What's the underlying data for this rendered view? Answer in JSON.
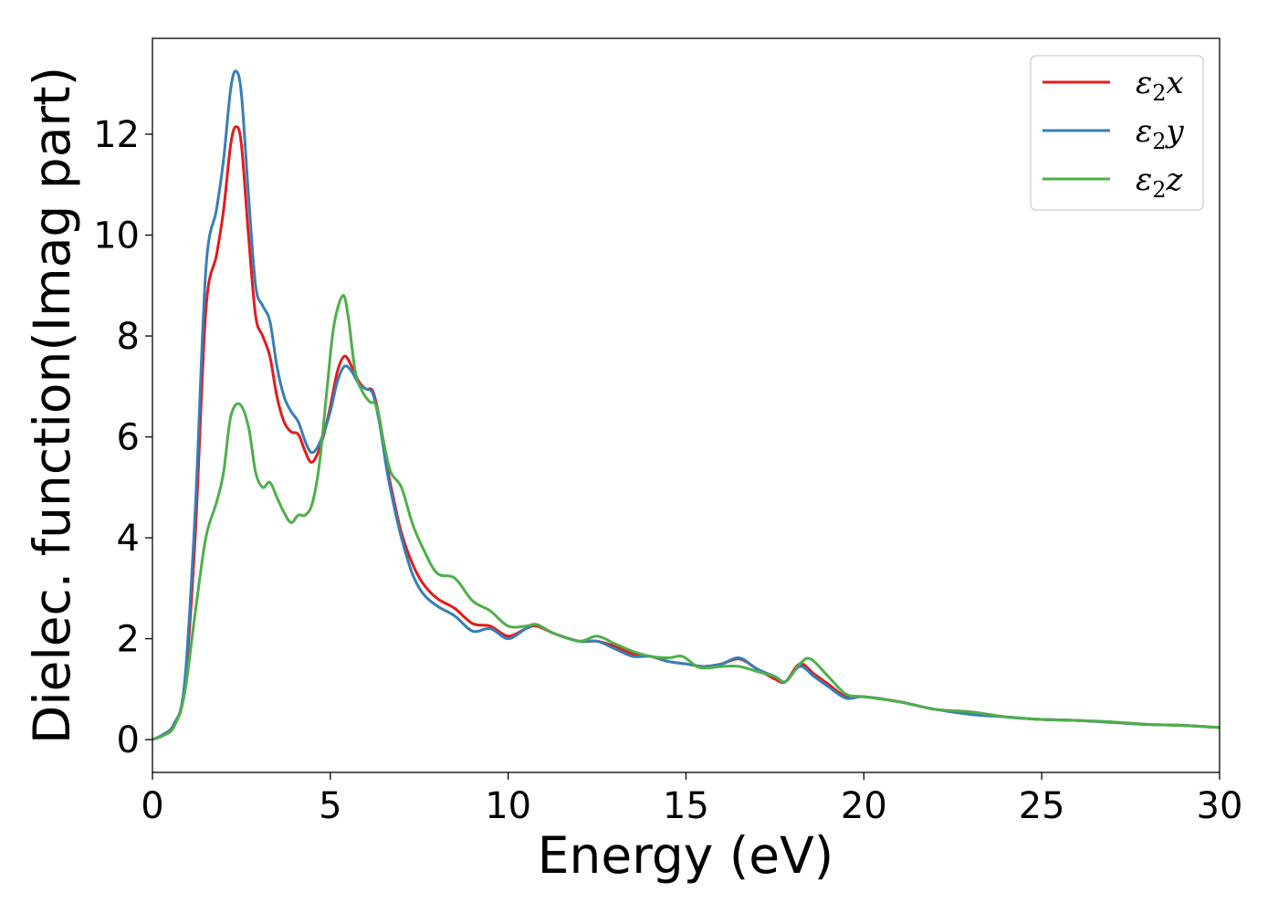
{
  "chart_data": {
    "type": "line",
    "title": "",
    "xlabel": "Energy (eV)",
    "ylabel": "Dielec. function(Imag part)",
    "xlim": [
      0,
      30
    ],
    "ylim": [
      -0.65,
      13.9
    ],
    "xticks": [
      0,
      5,
      10,
      15,
      20,
      25,
      30
    ],
    "yticks": [
      0,
      2,
      4,
      6,
      8,
      10,
      12
    ],
    "grid": false,
    "legend_position": "top-right",
    "series": [
      {
        "name": "ε₂x",
        "legend_base": "ε",
        "legend_sub": "2",
        "legend_tail": "x",
        "color": "#e41a1c",
        "points": [
          [
            0,
            0
          ],
          [
            0.3,
            0.1
          ],
          [
            0.6,
            0.3
          ],
          [
            0.9,
            1.0
          ],
          [
            1.2,
            4.0
          ],
          [
            1.5,
            8.5
          ],
          [
            1.8,
            9.6
          ],
          [
            2.0,
            10.5
          ],
          [
            2.2,
            11.8
          ],
          [
            2.35,
            12.15
          ],
          [
            2.5,
            11.8
          ],
          [
            2.7,
            10.0
          ],
          [
            2.9,
            8.4
          ],
          [
            3.1,
            8.0
          ],
          [
            3.3,
            7.6
          ],
          [
            3.5,
            6.8
          ],
          [
            3.7,
            6.3
          ],
          [
            3.9,
            6.1
          ],
          [
            4.1,
            6.05
          ],
          [
            4.3,
            5.7
          ],
          [
            4.45,
            5.5
          ],
          [
            4.6,
            5.6
          ],
          [
            4.8,
            6.0
          ],
          [
            5.0,
            6.6
          ],
          [
            5.2,
            7.3
          ],
          [
            5.4,
            7.6
          ],
          [
            5.6,
            7.4
          ],
          [
            5.8,
            7.1
          ],
          [
            6.0,
            6.95
          ],
          [
            6.2,
            6.9
          ],
          [
            6.4,
            6.3
          ],
          [
            6.6,
            5.4
          ],
          [
            6.8,
            4.7
          ],
          [
            7.0,
            4.1
          ],
          [
            7.3,
            3.5
          ],
          [
            7.6,
            3.1
          ],
          [
            8.0,
            2.8
          ],
          [
            8.5,
            2.6
          ],
          [
            9.0,
            2.3
          ],
          [
            9.5,
            2.25
          ],
          [
            10.0,
            2.05
          ],
          [
            10.5,
            2.2
          ],
          [
            10.8,
            2.25
          ],
          [
            11.3,
            2.1
          ],
          [
            12.0,
            1.95
          ],
          [
            12.5,
            1.95
          ],
          [
            13.0,
            1.85
          ],
          [
            13.5,
            1.7
          ],
          [
            14.0,
            1.65
          ],
          [
            14.5,
            1.55
          ],
          [
            15.0,
            1.5
          ],
          [
            15.5,
            1.45
          ],
          [
            16.0,
            1.5
          ],
          [
            16.5,
            1.6
          ],
          [
            17.0,
            1.4
          ],
          [
            17.5,
            1.2
          ],
          [
            17.8,
            1.15
          ],
          [
            18.2,
            1.5
          ],
          [
            18.6,
            1.3
          ],
          [
            19.0,
            1.1
          ],
          [
            19.5,
            0.85
          ],
          [
            20.0,
            0.85
          ],
          [
            21.0,
            0.75
          ],
          [
            22.0,
            0.6
          ],
          [
            23.0,
            0.55
          ],
          [
            24.0,
            0.45
          ],
          [
            25.0,
            0.4
          ],
          [
            26.0,
            0.38
          ],
          [
            27.0,
            0.34
          ],
          [
            28.0,
            0.3
          ],
          [
            29.0,
            0.28
          ],
          [
            30.0,
            0.24
          ]
        ]
      },
      {
        "name": "ε₂y",
        "legend_base": "ε",
        "legend_sub": "2",
        "legend_tail": "y",
        "color": "#377eb8",
        "points": [
          [
            0,
            0
          ],
          [
            0.3,
            0.1
          ],
          [
            0.6,
            0.3
          ],
          [
            0.9,
            1.1
          ],
          [
            1.2,
            4.5
          ],
          [
            1.5,
            9.3
          ],
          [
            1.8,
            10.5
          ],
          [
            2.0,
            11.5
          ],
          [
            2.2,
            12.9
          ],
          [
            2.35,
            13.25
          ],
          [
            2.5,
            12.8
          ],
          [
            2.7,
            10.8
          ],
          [
            2.9,
            9.0
          ],
          [
            3.1,
            8.6
          ],
          [
            3.3,
            8.3
          ],
          [
            3.5,
            7.4
          ],
          [
            3.7,
            6.8
          ],
          [
            3.9,
            6.5
          ],
          [
            4.1,
            6.3
          ],
          [
            4.3,
            5.9
          ],
          [
            4.45,
            5.7
          ],
          [
            4.6,
            5.75
          ],
          [
            4.8,
            6.05
          ],
          [
            5.0,
            6.5
          ],
          [
            5.2,
            7.1
          ],
          [
            5.4,
            7.4
          ],
          [
            5.6,
            7.3
          ],
          [
            5.8,
            7.05
          ],
          [
            6.0,
            6.95
          ],
          [
            6.2,
            6.85
          ],
          [
            6.4,
            6.2
          ],
          [
            6.6,
            5.3
          ],
          [
            6.8,
            4.6
          ],
          [
            7.0,
            4.0
          ],
          [
            7.3,
            3.3
          ],
          [
            7.6,
            2.9
          ],
          [
            8.0,
            2.65
          ],
          [
            8.5,
            2.45
          ],
          [
            9.0,
            2.15
          ],
          [
            9.5,
            2.2
          ],
          [
            10.0,
            2.0
          ],
          [
            10.5,
            2.2
          ],
          [
            10.8,
            2.28
          ],
          [
            11.3,
            2.1
          ],
          [
            12.0,
            1.95
          ],
          [
            12.5,
            1.95
          ],
          [
            13.0,
            1.8
          ],
          [
            13.5,
            1.65
          ],
          [
            14.0,
            1.65
          ],
          [
            14.5,
            1.55
          ],
          [
            15.0,
            1.5
          ],
          [
            15.5,
            1.45
          ],
          [
            16.0,
            1.5
          ],
          [
            16.5,
            1.62
          ],
          [
            17.0,
            1.4
          ],
          [
            17.5,
            1.25
          ],
          [
            17.8,
            1.15
          ],
          [
            18.2,
            1.45
          ],
          [
            18.6,
            1.25
          ],
          [
            19.0,
            1.05
          ],
          [
            19.5,
            0.82
          ],
          [
            20.0,
            0.85
          ],
          [
            21.0,
            0.75
          ],
          [
            22.0,
            0.6
          ],
          [
            23.0,
            0.5
          ],
          [
            24.0,
            0.45
          ],
          [
            25.0,
            0.4
          ],
          [
            26.0,
            0.38
          ],
          [
            27.0,
            0.34
          ],
          [
            28.0,
            0.3
          ],
          [
            29.0,
            0.28
          ],
          [
            30.0,
            0.24
          ]
        ]
      },
      {
        "name": "ε₂z",
        "legend_base": "ε",
        "legend_sub": "2",
        "legend_tail": "z",
        "color": "#4daf4a",
        "points": [
          [
            0,
            0
          ],
          [
            0.3,
            0.08
          ],
          [
            0.6,
            0.25
          ],
          [
            0.9,
            0.9
          ],
          [
            1.2,
            2.5
          ],
          [
            1.5,
            4.0
          ],
          [
            1.8,
            4.7
          ],
          [
            2.0,
            5.3
          ],
          [
            2.2,
            6.4
          ],
          [
            2.45,
            6.65
          ],
          [
            2.7,
            6.2
          ],
          [
            2.9,
            5.3
          ],
          [
            3.1,
            5.0
          ],
          [
            3.3,
            5.1
          ],
          [
            3.5,
            4.8
          ],
          [
            3.7,
            4.5
          ],
          [
            3.9,
            4.3
          ],
          [
            4.1,
            4.45
          ],
          [
            4.3,
            4.45
          ],
          [
            4.5,
            4.7
          ],
          [
            4.7,
            5.5
          ],
          [
            4.9,
            6.9
          ],
          [
            5.1,
            8.2
          ],
          [
            5.35,
            8.8
          ],
          [
            5.5,
            8.4
          ],
          [
            5.7,
            7.3
          ],
          [
            5.9,
            6.9
          ],
          [
            6.1,
            6.7
          ],
          [
            6.3,
            6.6
          ],
          [
            6.5,
            5.9
          ],
          [
            6.7,
            5.3
          ],
          [
            7.0,
            5.0
          ],
          [
            7.3,
            4.3
          ],
          [
            7.6,
            3.8
          ],
          [
            8.0,
            3.3
          ],
          [
            8.5,
            3.2
          ],
          [
            9.0,
            2.75
          ],
          [
            9.5,
            2.55
          ],
          [
            10.0,
            2.25
          ],
          [
            10.5,
            2.25
          ],
          [
            10.8,
            2.28
          ],
          [
            11.3,
            2.1
          ],
          [
            12.0,
            1.95
          ],
          [
            12.5,
            2.05
          ],
          [
            13.0,
            1.9
          ],
          [
            13.5,
            1.75
          ],
          [
            14.0,
            1.65
          ],
          [
            14.5,
            1.62
          ],
          [
            14.9,
            1.65
          ],
          [
            15.3,
            1.45
          ],
          [
            15.6,
            1.42
          ],
          [
            16.0,
            1.45
          ],
          [
            16.5,
            1.45
          ],
          [
            17.0,
            1.35
          ],
          [
            17.5,
            1.25
          ],
          [
            17.8,
            1.15
          ],
          [
            18.2,
            1.5
          ],
          [
            18.5,
            1.6
          ],
          [
            19.0,
            1.25
          ],
          [
            19.5,
            0.9
          ],
          [
            20.0,
            0.85
          ],
          [
            21.0,
            0.75
          ],
          [
            22.0,
            0.6
          ],
          [
            23.0,
            0.55
          ],
          [
            24.0,
            0.45
          ],
          [
            25.0,
            0.4
          ],
          [
            26.0,
            0.38
          ],
          [
            27.0,
            0.35
          ],
          [
            28.0,
            0.3
          ],
          [
            29.0,
            0.28
          ],
          [
            30.0,
            0.24
          ]
        ]
      }
    ]
  }
}
